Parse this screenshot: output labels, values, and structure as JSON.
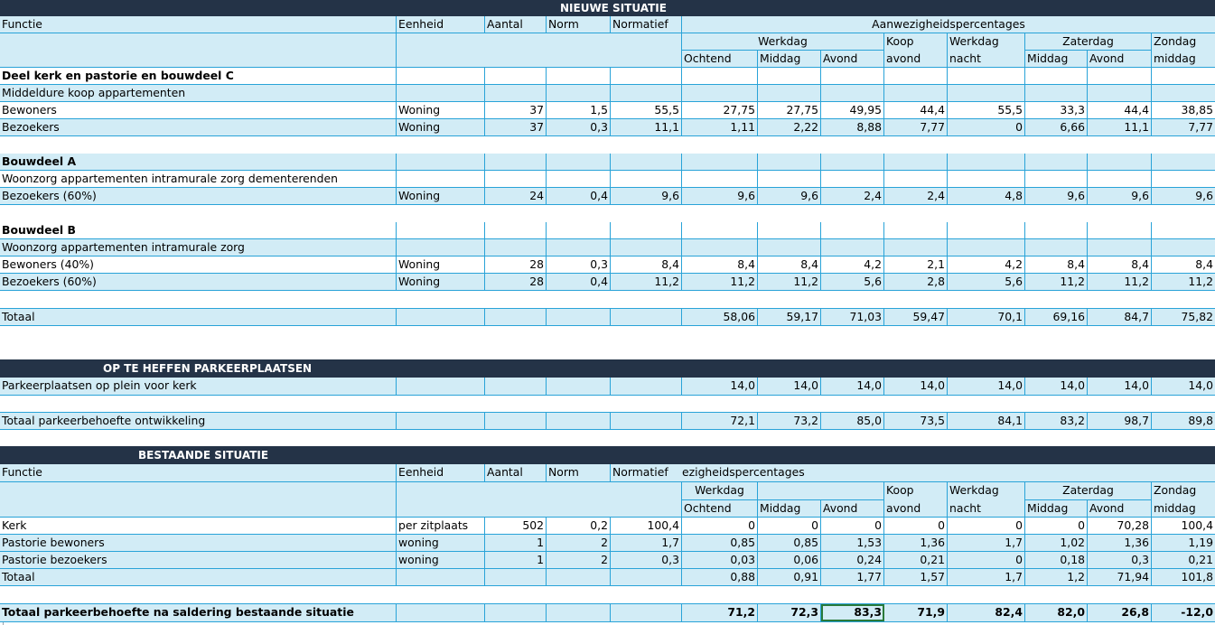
{
  "new": {
    "title": "NIEUWE SITUATIE",
    "headers": {
      "functie": "Functie",
      "eenheid": "Eenheid",
      "aantal": "Aantal",
      "norm": "Norm",
      "normatief": "Normatief",
      "aanwezigheid": "Aanwezigheidspercentages",
      "werkdag": "Werkdag",
      "koop": "Koop",
      "werkdag2": "Werkdag",
      "zaterdag": "Zaterdag",
      "zondag": "Zondag",
      "ochtend": "Ochtend",
      "middag": "Middag",
      "avond": "Avond",
      "koop_avond": "avond",
      "nacht": "nacht",
      "zat_middag": "Middag",
      "zat_avond": "Avond",
      "zon_middag": "middag"
    },
    "sections": {
      "deel_c": "Deel kerk en pastorie en bouwdeel C",
      "deel_c_sub": "Middeldure koop appartementen",
      "deel_a": "Bouwdeel A",
      "deel_a_sub": "Woonzorg appartementen intramurale zorg dementerenden",
      "deel_b": "Bouwdeel B",
      "deel_b_sub": "Woonzorg appartementen intramurale zorg"
    },
    "rows": {
      "c_bewoners": [
        "Bewoners",
        "Woning",
        "37",
        "1,5",
        "55,5",
        "27,75",
        "27,75",
        "49,95",
        "44,4",
        "55,5",
        "33,3",
        "44,4",
        "38,85"
      ],
      "c_bezoekers": [
        "Bezoekers",
        "Woning",
        "37",
        "0,3",
        "11,1",
        "1,11",
        "2,22",
        "8,88",
        "7,77",
        "0",
        "6,66",
        "11,1",
        "7,77"
      ],
      "a_bezoekers": [
        "Bezoekers (60%)",
        "Woning",
        "24",
        "0,4",
        "9,6",
        "9,6",
        "9,6",
        "2,4",
        "2,4",
        "4,8",
        "9,6",
        "9,6",
        "9,6"
      ],
      "b_bewoners": [
        "Bewoners (40%)",
        "Woning",
        "28",
        "0,3",
        "8,4",
        "8,4",
        "8,4",
        "4,2",
        "2,1",
        "4,2",
        "8,4",
        "8,4",
        "8,4"
      ],
      "b_bezoekers": [
        "Bezoekers (60%)",
        "Woning",
        "28",
        "0,4",
        "11,2",
        "11,2",
        "11,2",
        "5,6",
        "2,8",
        "5,6",
        "11,2",
        "11,2",
        "11,2"
      ],
      "totaal": [
        "Totaal",
        "",
        "",
        "",
        "",
        "58,06",
        "59,17",
        "71,03",
        "59,47",
        "70,1",
        "69,16",
        "84,7",
        "75,82"
      ]
    }
  },
  "heffen": {
    "title": "OP TE HEFFEN PARKEERPLAATSEN",
    "plein": [
      "Parkeerplaatsen op plein voor kerk",
      "",
      "",
      "",
      "",
      "14,0",
      "14,0",
      "14,0",
      "14,0",
      "14,0",
      "14,0",
      "14,0",
      "14,0"
    ],
    "totaal": [
      "Totaal parkeerbehoefte ontwikkeling",
      "",
      "",
      "",
      "",
      "72,1",
      "73,2",
      "85,0",
      "73,5",
      "84,1",
      "83,2",
      "98,7",
      "89,8"
    ]
  },
  "existing": {
    "title": "BESTAANDE SITUATIE",
    "headers": {
      "functie": "Functie",
      "eenheid": "Eenheid",
      "aantal": "Aantal",
      "norm": "Norm",
      "normatief": "Normatief",
      "aanwezigheid": "ezigheidspercentages",
      "werkdag": "Werkdag",
      "koop": "Koop",
      "werkdag2": "Werkdag",
      "zaterdag": "Zaterdag",
      "zondag": "Zondag",
      "ochtend": "Ochtend",
      "middag": "Middag",
      "avond": "Avond",
      "koop_avond": "avond",
      "nacht": "nacht",
      "zat_middag": "Middag",
      "zat_avond": "Avond",
      "zon_middag": "middag"
    },
    "rows": {
      "kerk": [
        "Kerk",
        "per zitplaats",
        "502",
        "0,2",
        "100,4",
        "0",
        "0",
        "0",
        "0",
        "0",
        "0",
        "70,28",
        "100,4"
      ],
      "pastorie_bewoners": [
        "Pastorie bewoners",
        "woning",
        "1",
        "2",
        "1,7",
        "0,85",
        "0,85",
        "1,53",
        "1,36",
        "1,7",
        "1,02",
        "1,36",
        "1,19"
      ],
      "pastorie_bezoekers": [
        "Pastorie bezoekers",
        "woning",
        "1",
        "2",
        "0,3",
        "0,03",
        "0,06",
        "0,24",
        "0,21",
        "0",
        "0,18",
        "0,3",
        "0,21"
      ],
      "totaal": [
        "Totaal",
        "",
        "",
        "",
        "",
        "0,88",
        "0,91",
        "1,77",
        "1,57",
        "1,7",
        "1,2",
        "71,94",
        "101,8"
      ]
    }
  },
  "final": [
    "Totaal parkeerbehoefte na saldering bestaande situatie",
    "",
    "",
    "",
    "",
    "71,2",
    "72,3",
    "83,3",
    "71,9",
    "82,4",
    "82,0",
    "26,8",
    "-12,0"
  ]
}
